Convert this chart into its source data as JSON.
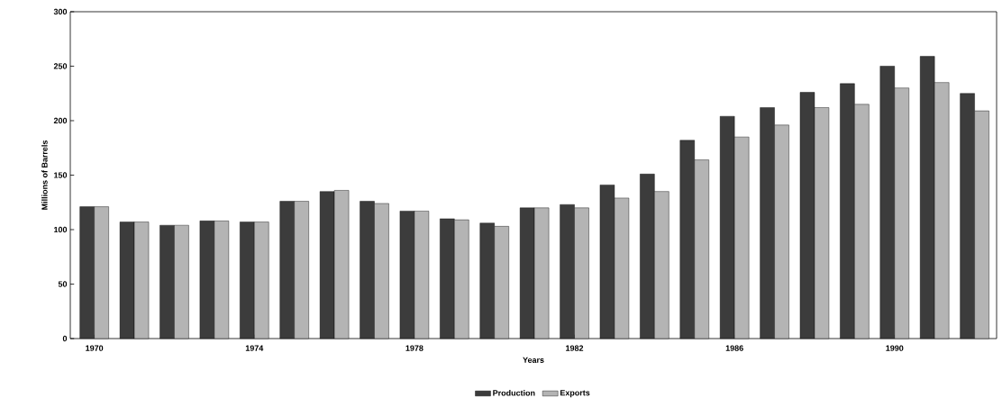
{
  "chart_data": {
    "type": "bar",
    "xlabel": "Years",
    "ylabel": "Millions of Barrels",
    "categories": [
      "1970",
      null,
      null,
      null,
      "1974",
      null,
      null,
      null,
      "1978",
      null,
      null,
      null,
      "1982",
      null,
      null,
      null,
      "1986",
      null,
      null,
      null,
      "1990",
      null,
      null
    ],
    "series": [
      {
        "name": "Production",
        "color": "#3c3c3c",
        "values": [
          121,
          107,
          104,
          108,
          107,
          126,
          135,
          126,
          117,
          110,
          106,
          120,
          123,
          141,
          151,
          182,
          204,
          212,
          226,
          234,
          250,
          259,
          225
        ]
      },
      {
        "name": "Exports",
        "color": "#b4b4b4",
        "values": [
          121,
          107,
          104,
          108,
          107,
          126,
          136,
          124,
          117,
          109,
          103,
          120,
          120,
          129,
          135,
          164,
          185,
          196,
          212,
          215,
          230,
          235,
          209
        ]
      }
    ],
    "ylim": [
      0,
      300
    ],
    "yticks": [
      0,
      50,
      100,
      150,
      200,
      250,
      300
    ],
    "grid": false,
    "legend": "bottom"
  }
}
